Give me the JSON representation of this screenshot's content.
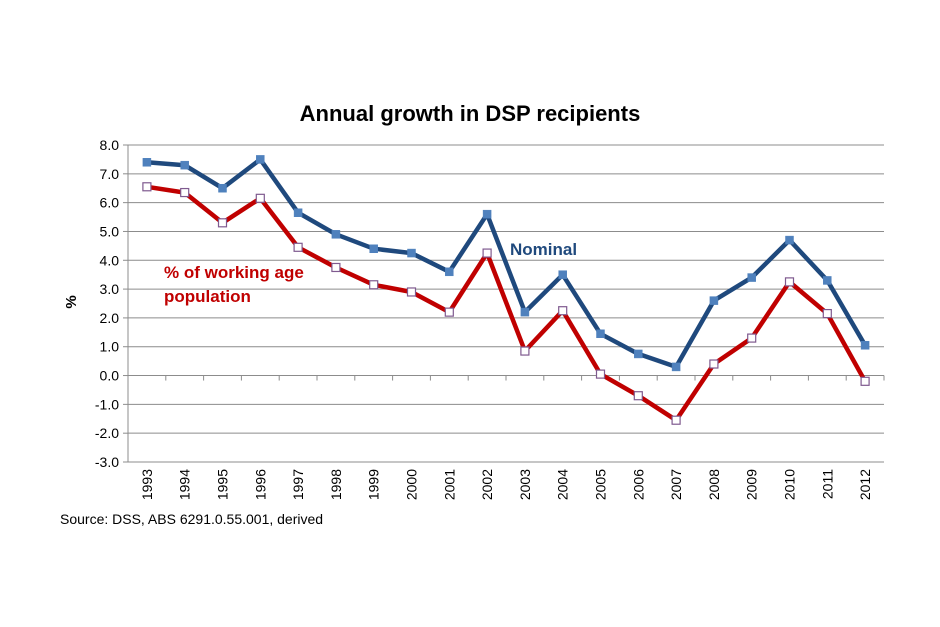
{
  "chart_data": {
    "type": "line",
    "title": "Annual growth in DSP recipients",
    "xlabel": "",
    "ylabel": "%",
    "ylim": [
      -3.0,
      8.0
    ],
    "yticks": [
      "8.0",
      "7.0",
      "6.0",
      "5.0",
      "4.0",
      "3.0",
      "2.0",
      "1.0",
      "0.0",
      "-1.0",
      "-2.0",
      "-3.0"
    ],
    "categories": [
      "1993",
      "1994",
      "1995",
      "1996",
      "1997",
      "1998",
      "1999",
      "2000",
      "2001",
      "2002",
      "2003",
      "2004",
      "2005",
      "2006",
      "2007",
      "2008",
      "2009",
      "2010",
      "2011",
      "2012"
    ],
    "grid": true,
    "series": [
      {
        "name": "Nominal",
        "color": "#1f497d",
        "marker_color": "#4f81bd",
        "values": [
          7.4,
          7.3,
          6.5,
          7.5,
          5.65,
          4.9,
          4.4,
          4.25,
          3.6,
          5.6,
          2.2,
          3.5,
          1.45,
          0.75,
          0.3,
          2.6,
          3.4,
          4.7,
          3.3,
          1.05
        ]
      },
      {
        "name": "% of working age population",
        "name_lines": [
          "% of working age",
          "population"
        ],
        "color": "#c00000",
        "marker_color": "#ffffff",
        "values": [
          6.55,
          6.35,
          5.3,
          6.15,
          4.45,
          3.75,
          3.15,
          2.9,
          2.2,
          4.25,
          0.85,
          2.25,
          0.05,
          -0.7,
          -1.55,
          0.4,
          1.3,
          3.25,
          2.15,
          -0.2
        ]
      }
    ]
  },
  "source": "Source: DSS, ABS 6291.0.55.001, derived"
}
